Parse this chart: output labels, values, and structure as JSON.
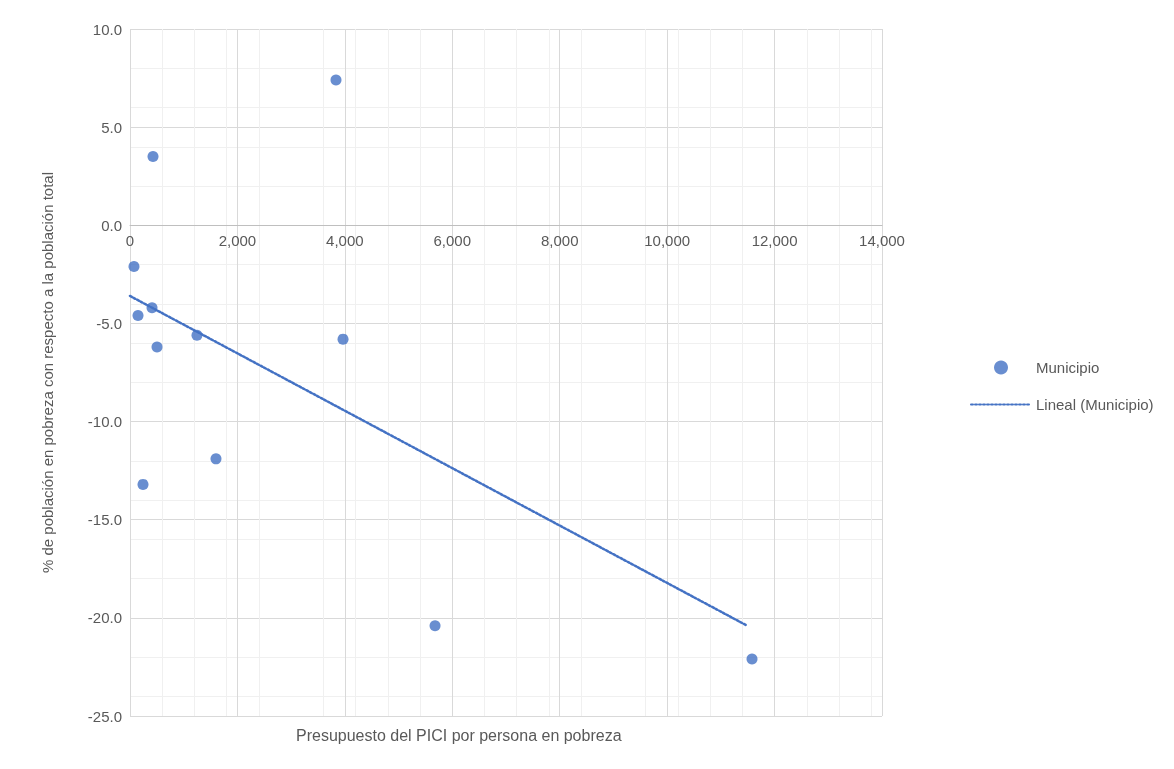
{
  "chart_data": {
    "type": "scatter",
    "xlabel": "Presupuesto del PICI por persona en pobreza",
    "ylabel": "% de población en pobreza con respecto a la población total",
    "xlim": [
      0,
      14000
    ],
    "xticks": [
      {
        "value": 0,
        "label": "0"
      },
      {
        "value": 2000,
        "label": "2,000"
      },
      {
        "value": 4000,
        "label": "4,000"
      },
      {
        "value": 6000,
        "label": "6,000"
      },
      {
        "value": 8000,
        "label": "8,000"
      },
      {
        "value": 10000,
        "label": "10,000"
      },
      {
        "value": 12000,
        "label": "12,000"
      },
      {
        "value": 14000,
        "label": "14,000"
      }
    ],
    "ylim": [
      -25,
      10
    ],
    "yticks": [
      {
        "value": -25,
        "label": "-25.0"
      },
      {
        "value": -20,
        "label": "-20.0"
      },
      {
        "value": -15,
        "label": "-15.0"
      },
      {
        "value": -10,
        "label": "-10.0"
      },
      {
        "value": -5,
        "label": "-5.0"
      },
      {
        "value": 0,
        "label": "0.0"
      },
      {
        "value": 5,
        "label": "5.0"
      },
      {
        "value": 10,
        "label": "10.0"
      }
    ],
    "grid": true,
    "legend": "right",
    "marker": "circle",
    "series": [
      {
        "name": "Municipio",
        "type": "scatter",
        "color": "#4472c4",
        "x": [
          74,
          149,
          242,
          410,
          428,
          503,
          1247,
          1601,
          3835,
          3966,
          5679,
          11580
        ],
        "values": [
          -2.1,
          -4.6,
          -13.2,
          -4.2,
          3.5,
          -6.2,
          -5.6,
          -11.9,
          7.4,
          -5.8,
          -20.4,
          -22.1
        ]
      },
      {
        "name": "Lineal (Municipio)",
        "type": "line",
        "color": "#4472c4",
        "line_style": "dotted",
        "marker": "none",
        "x": [
          0,
          11490
        ],
        "values": [
          -3.6,
          -20.4
        ]
      }
    ]
  }
}
